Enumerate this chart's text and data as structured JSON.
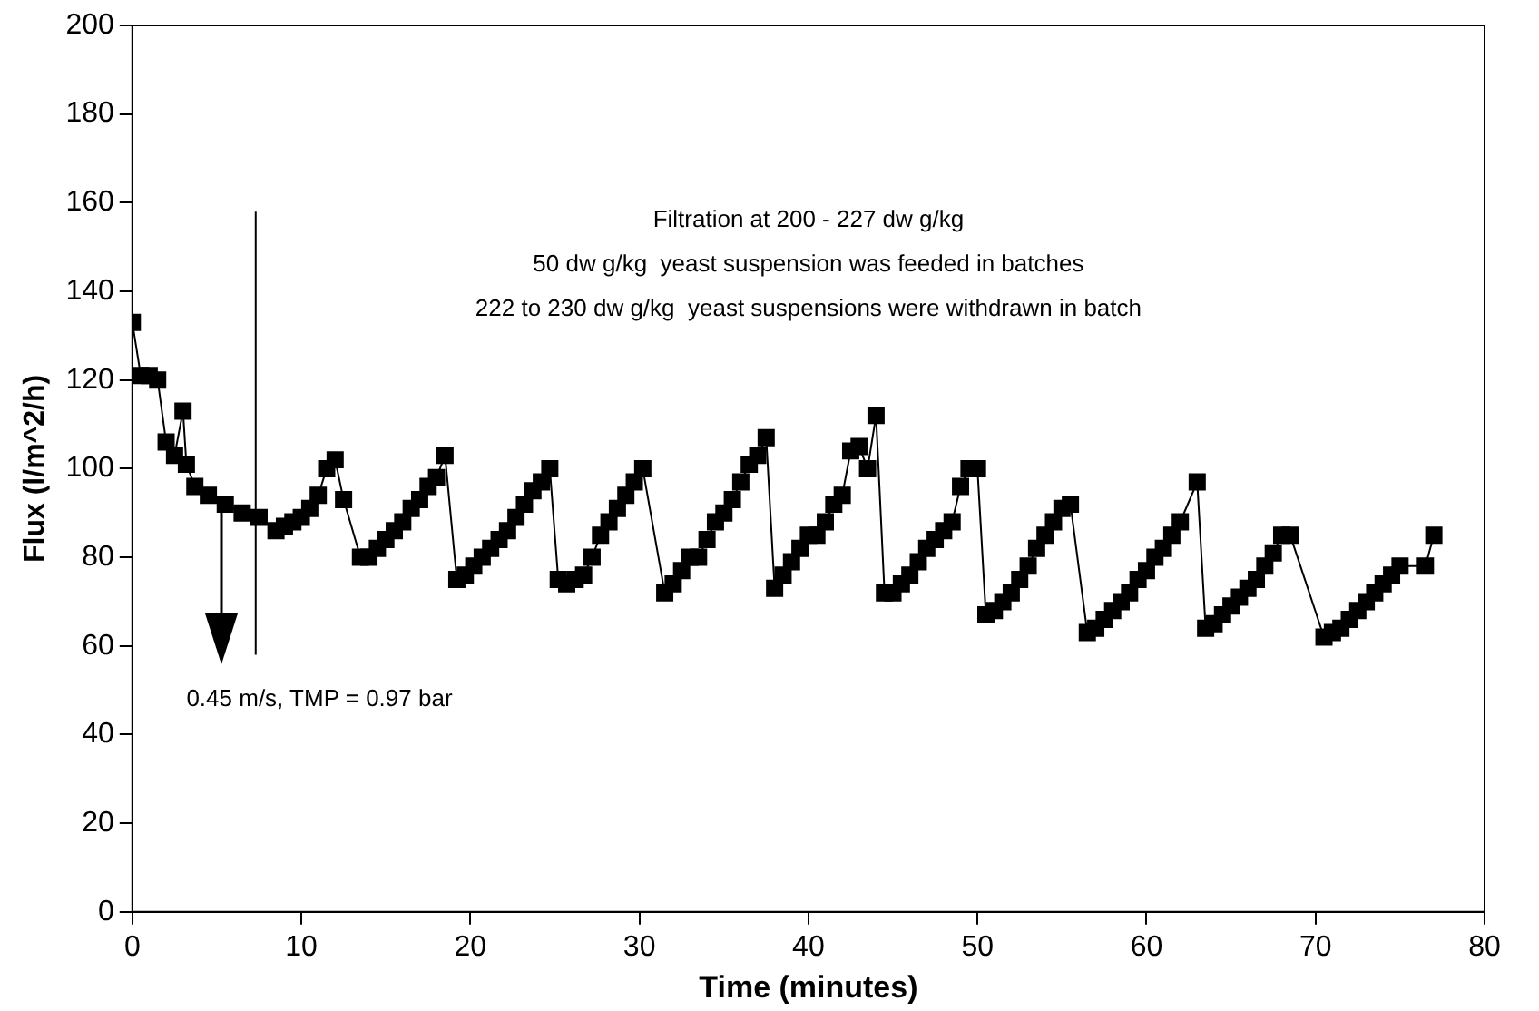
{
  "chart_data": {
    "type": "line",
    "xlabel": "Time (minutes)",
    "ylabel": "Flux (l/m^2/h)",
    "xlim": [
      0,
      80
    ],
    "xticks": [
      0,
      10,
      20,
      30,
      40,
      50,
      60,
      70,
      80
    ],
    "ylim": [
      0,
      200
    ],
    "yticks": [
      0,
      20,
      40,
      60,
      80,
      100,
      120,
      140,
      160,
      180,
      200
    ],
    "grid": false,
    "legend": false,
    "marker": "square",
    "line_style": "solid",
    "ref_lines": [
      {
        "axis": "x",
        "value": 7.3,
        "color": "#000000"
      }
    ],
    "annotations": [
      "Filtration at 200 - 227 dw g/kg",
      "50 dw g/kg  yeast suspension was feeded in batches",
      "222 to 230 dw g/kg  yeast suspensions were withdrawn in batch",
      "0.45 m/s, TMP = 0.97 bar"
    ],
    "series": [
      {
        "color": "#000000",
        "x": [
          0,
          0.5,
          1,
          1.5,
          2,
          2.5,
          3,
          3.2,
          3.7,
          4.5,
          5.5,
          6.5,
          7.5,
          8.5,
          9,
          9.5,
          10,
          10.5,
          11,
          11.5,
          12,
          12.5,
          13.5,
          14,
          14.5,
          15,
          15.5,
          16,
          16.5,
          17,
          17.5,
          18,
          18.5,
          19.2,
          19.7,
          20.2,
          20.7,
          21.2,
          21.7,
          22.2,
          22.7,
          23.2,
          23.7,
          24.2,
          24.7,
          25.2,
          25.7,
          26.2,
          26.7,
          27.2,
          27.7,
          28.2,
          28.7,
          29.2,
          29.7,
          30.2,
          31.5,
          32,
          32.5,
          33,
          33.5,
          34,
          34.5,
          35,
          35.5,
          36,
          36.5,
          37,
          37.5,
          38,
          38.5,
          39,
          39.5,
          40,
          40.5,
          41,
          41.5,
          42,
          42.5,
          43,
          43.5,
          44,
          44.5,
          45,
          45.5,
          46,
          46.5,
          47,
          47.5,
          48,
          48.5,
          49,
          49.5,
          50,
          50.5,
          51,
          51.5,
          52,
          52.5,
          53,
          53.5,
          54,
          54.5,
          55,
          55.5,
          56.5,
          57,
          57.5,
          58,
          58.5,
          59,
          59.5,
          60,
          60.5,
          61,
          61.5,
          62,
          63,
          63.5,
          64,
          64.5,
          65,
          65.5,
          66,
          66.5,
          67,
          67.5,
          68,
          68.5,
          70.5,
          71,
          71.5,
          72,
          72.5,
          73,
          73.5,
          74,
          74.5,
          75,
          76.5,
          77
        ],
        "values": [
          133,
          121,
          121,
          120,
          106,
          103,
          113,
          101,
          96,
          94,
          92,
          90,
          89,
          86,
          87,
          88,
          89,
          91,
          94,
          100,
          102,
          93,
          80,
          80,
          82,
          84,
          86,
          88,
          91,
          93,
          96,
          98,
          103,
          75,
          76,
          78,
          80,
          82,
          84,
          86,
          89,
          92,
          95,
          97,
          100,
          75,
          74,
          75,
          76,
          80,
          85,
          88,
          91,
          94,
          97,
          100,
          72,
          74,
          77,
          80,
          80,
          84,
          88,
          90,
          93,
          97,
          101,
          103,
          107,
          73,
          76,
          79,
          82,
          85,
          85,
          88,
          92,
          94,
          104,
          105,
          100,
          112,
          72,
          72,
          74,
          76,
          79,
          82,
          84,
          86,
          88,
          96,
          100,
          100,
          67,
          68,
          70,
          72,
          75,
          78,
          82,
          85,
          88,
          91,
          92,
          63,
          64,
          66,
          68,
          70,
          72,
          75,
          77,
          80,
          82,
          85,
          88,
          97,
          64,
          65,
          67,
          69,
          71,
          73,
          75,
          78,
          81,
          85,
          85,
          62,
          63,
          64,
          66,
          68,
          70,
          72,
          74,
          76,
          78,
          78,
          85
        ]
      }
    ]
  }
}
